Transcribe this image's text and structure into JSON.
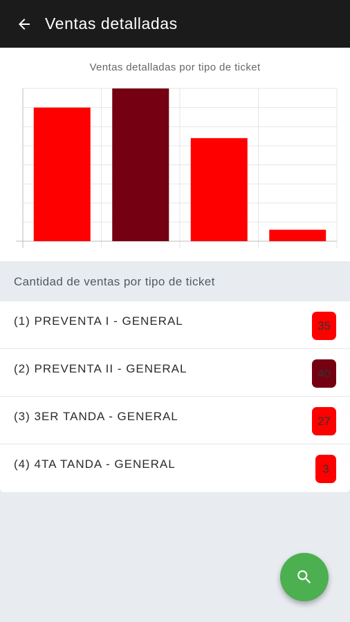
{
  "appbar": {
    "title": "Ventas detalladas",
    "back_icon": "arrow-left-icon"
  },
  "chart_data": {
    "type": "bar",
    "title": "Ventas detalladas por tipo de ticket",
    "categories": [
      "(1) PREVENTA I - GENERAL",
      "(2) PREVENTA II - GENERAL",
      "(3) 3ER TANDA - GENERAL",
      "(4) 4TA TANDA - GENERAL"
    ],
    "values": [
      35,
      40,
      27,
      3
    ],
    "colors": [
      "#ff0000",
      "#750011",
      "#ff0000",
      "#ff0000"
    ],
    "ylim": [
      0,
      40
    ],
    "grid": true
  },
  "section": {
    "header": "Cantidad de ventas por tipo de ticket"
  },
  "items": [
    {
      "label": "(1) PREVENTA I - GENERAL",
      "count": "35",
      "color": "#ff0000"
    },
    {
      "label": "(2) PREVENTA II - GENERAL",
      "count": "40",
      "color": "#750011"
    },
    {
      "label": "(3) 3ER TANDA - GENERAL",
      "count": "27",
      "color": "#ff0000"
    },
    {
      "label": "(4) 4TA TANDA - GENERAL",
      "count": "3",
      "color": "#ff0000"
    }
  ],
  "fab": {
    "icon": "search-icon"
  }
}
